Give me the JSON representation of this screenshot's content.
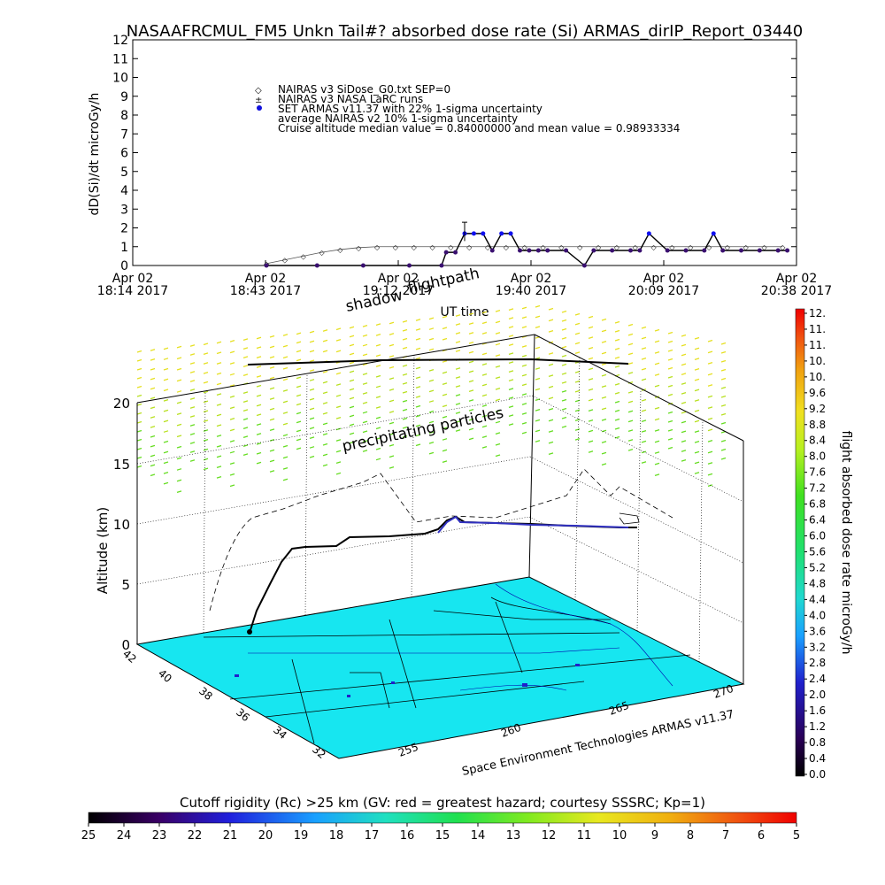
{
  "title": "NASAAFRCMUL_FM5 Unkn Tail#? absorbed dose rate (Si) ARMAS_dirIP_Report_03440",
  "chart_data": [
    {
      "type": "line",
      "title": "NASAAFRCMUL_FM5 Unkn Tail#? absorbed dose rate (Si) ARMAS_dirIP_Report_03440",
      "xlabel": "UT time",
      "ylabel": "dD(Si)/dt microGy/h",
      "ylim": [
        0,
        12
      ],
      "yticks": [
        "0",
        "1",
        "2",
        "3",
        "4",
        "5",
        "6",
        "7",
        "8",
        "9",
        "10",
        "11",
        "12"
      ],
      "xticks": [
        {
          "top": "Apr 02",
          "bottom": "18:14 2017"
        },
        {
          "top": "Apr 02",
          "bottom": "18:43 2017"
        },
        {
          "top": "Apr 02",
          "bottom": "19:12 2017"
        },
        {
          "top": "Apr 02",
          "bottom": "19:40 2017"
        },
        {
          "top": "Apr 02",
          "bottom": "20:09 2017"
        },
        {
          "top": "Apr 02",
          "bottom": "20:38 2017"
        }
      ],
      "xlim_minutes": [
        0,
        144
      ],
      "legend": {
        "placement": "top-left",
        "entries": [
          "NAIRAS v3 SiDose_G0.txt SEP=0",
          "NAIRAS v3 NASA LaRC runs",
          "SET ARMAS v11.37 with 22% 1-sigma uncertainty",
          "average NAIRAS v2 10% 1-sigma uncertainty",
          "Cruise altitude median value = 0.84000000 and mean value = 0.98933334"
        ]
      },
      "series": [
        {
          "name": "NAIRAS v3 SiDose_G0.txt SEP=0",
          "color": "#555555",
          "x": [
            29,
            33,
            37,
            41,
            45,
            49,
            53,
            57,
            61,
            65,
            69,
            73,
            77,
            81,
            85,
            89,
            93,
            97,
            101,
            105,
            109,
            113,
            117,
            121,
            125,
            129,
            133,
            137,
            141
          ],
          "values": [
            0.1,
            0.3,
            0.5,
            0.7,
            0.85,
            0.95,
            1.0,
            1.0,
            1.0,
            1.0,
            1.0,
            1.0,
            1.0,
            1.0,
            1.0,
            1.0,
            1.0,
            1.0,
            1.0,
            1.0,
            1.0,
            1.0,
            1.0,
            1.0,
            1.0,
            1.0,
            1.0,
            1.0,
            1.0
          ]
        },
        {
          "name": "SET ARMAS v11.37 with 22% 1-sigma uncertainty",
          "color": "#1010dd",
          "x": [
            29,
            40,
            50,
            60,
            67,
            68,
            70,
            72,
            74,
            76,
            78,
            80,
            82,
            84,
            86,
            88,
            90,
            94,
            98,
            100,
            104,
            108,
            110,
            112,
            116,
            120,
            124,
            126,
            128,
            132,
            136,
            140,
            142
          ],
          "values": [
            0,
            0,
            0,
            0,
            0,
            0.7,
            0.7,
            1.7,
            1.7,
            1.7,
            0.8,
            1.7,
            1.7,
            0.8,
            0.8,
            0.8,
            0.8,
            0.8,
            0,
            0.8,
            0.8,
            0.8,
            0.8,
            1.7,
            0.8,
            0.8,
            0.8,
            1.7,
            0.8,
            0.8,
            0.8,
            0.8,
            0.8
          ]
        }
      ]
    },
    {
      "type": "scatter",
      "title": "",
      "zlabel": "Altitude (km)",
      "zticks": [
        "0",
        "5",
        "10",
        "15",
        "20"
      ],
      "lat_ticks": [
        "42",
        "40",
        "38",
        "36",
        "34",
        "32"
      ],
      "lon_ticks": [
        "255",
        "260",
        "265",
        "270"
      ],
      "annotations": [
        "shadow",
        "flightpath",
        "precipitating particles"
      ],
      "footer": "Space Environment Technologies ARMAS v11.37",
      "colorbar": {
        "label": "flight absorbed dose rate microGy/h",
        "range": [
          0,
          12
        ],
        "ticks": [
          "12.",
          "11.",
          "11.",
          "10.",
          "10.",
          "9.6",
          "9.2",
          "8.8",
          "8.4",
          "8.0",
          "7.6",
          "7.2",
          "6.8",
          "6.4",
          "6.0",
          "5.6",
          "5.2",
          "4.8",
          "4.4",
          "4.0",
          "3.6",
          "3.2",
          "2.8",
          "2.4",
          "2.0",
          "1.6",
          "1.2",
          "0.8",
          "0.4",
          "0.0"
        ]
      }
    },
    {
      "type": "heatmap",
      "title": "Cutoff rigidity (Rc) >25 km (GV: red = greatest hazard; courtesy SSSRC; Kp=1)",
      "ticks": [
        "25",
        "24",
        "23",
        "22",
        "21",
        "20",
        "19",
        "18",
        "17",
        "16",
        "15",
        "14",
        "13",
        "12",
        "11",
        "10",
        "9",
        "8",
        "7",
        "6",
        "5"
      ],
      "range": [
        25,
        5
      ]
    }
  ]
}
